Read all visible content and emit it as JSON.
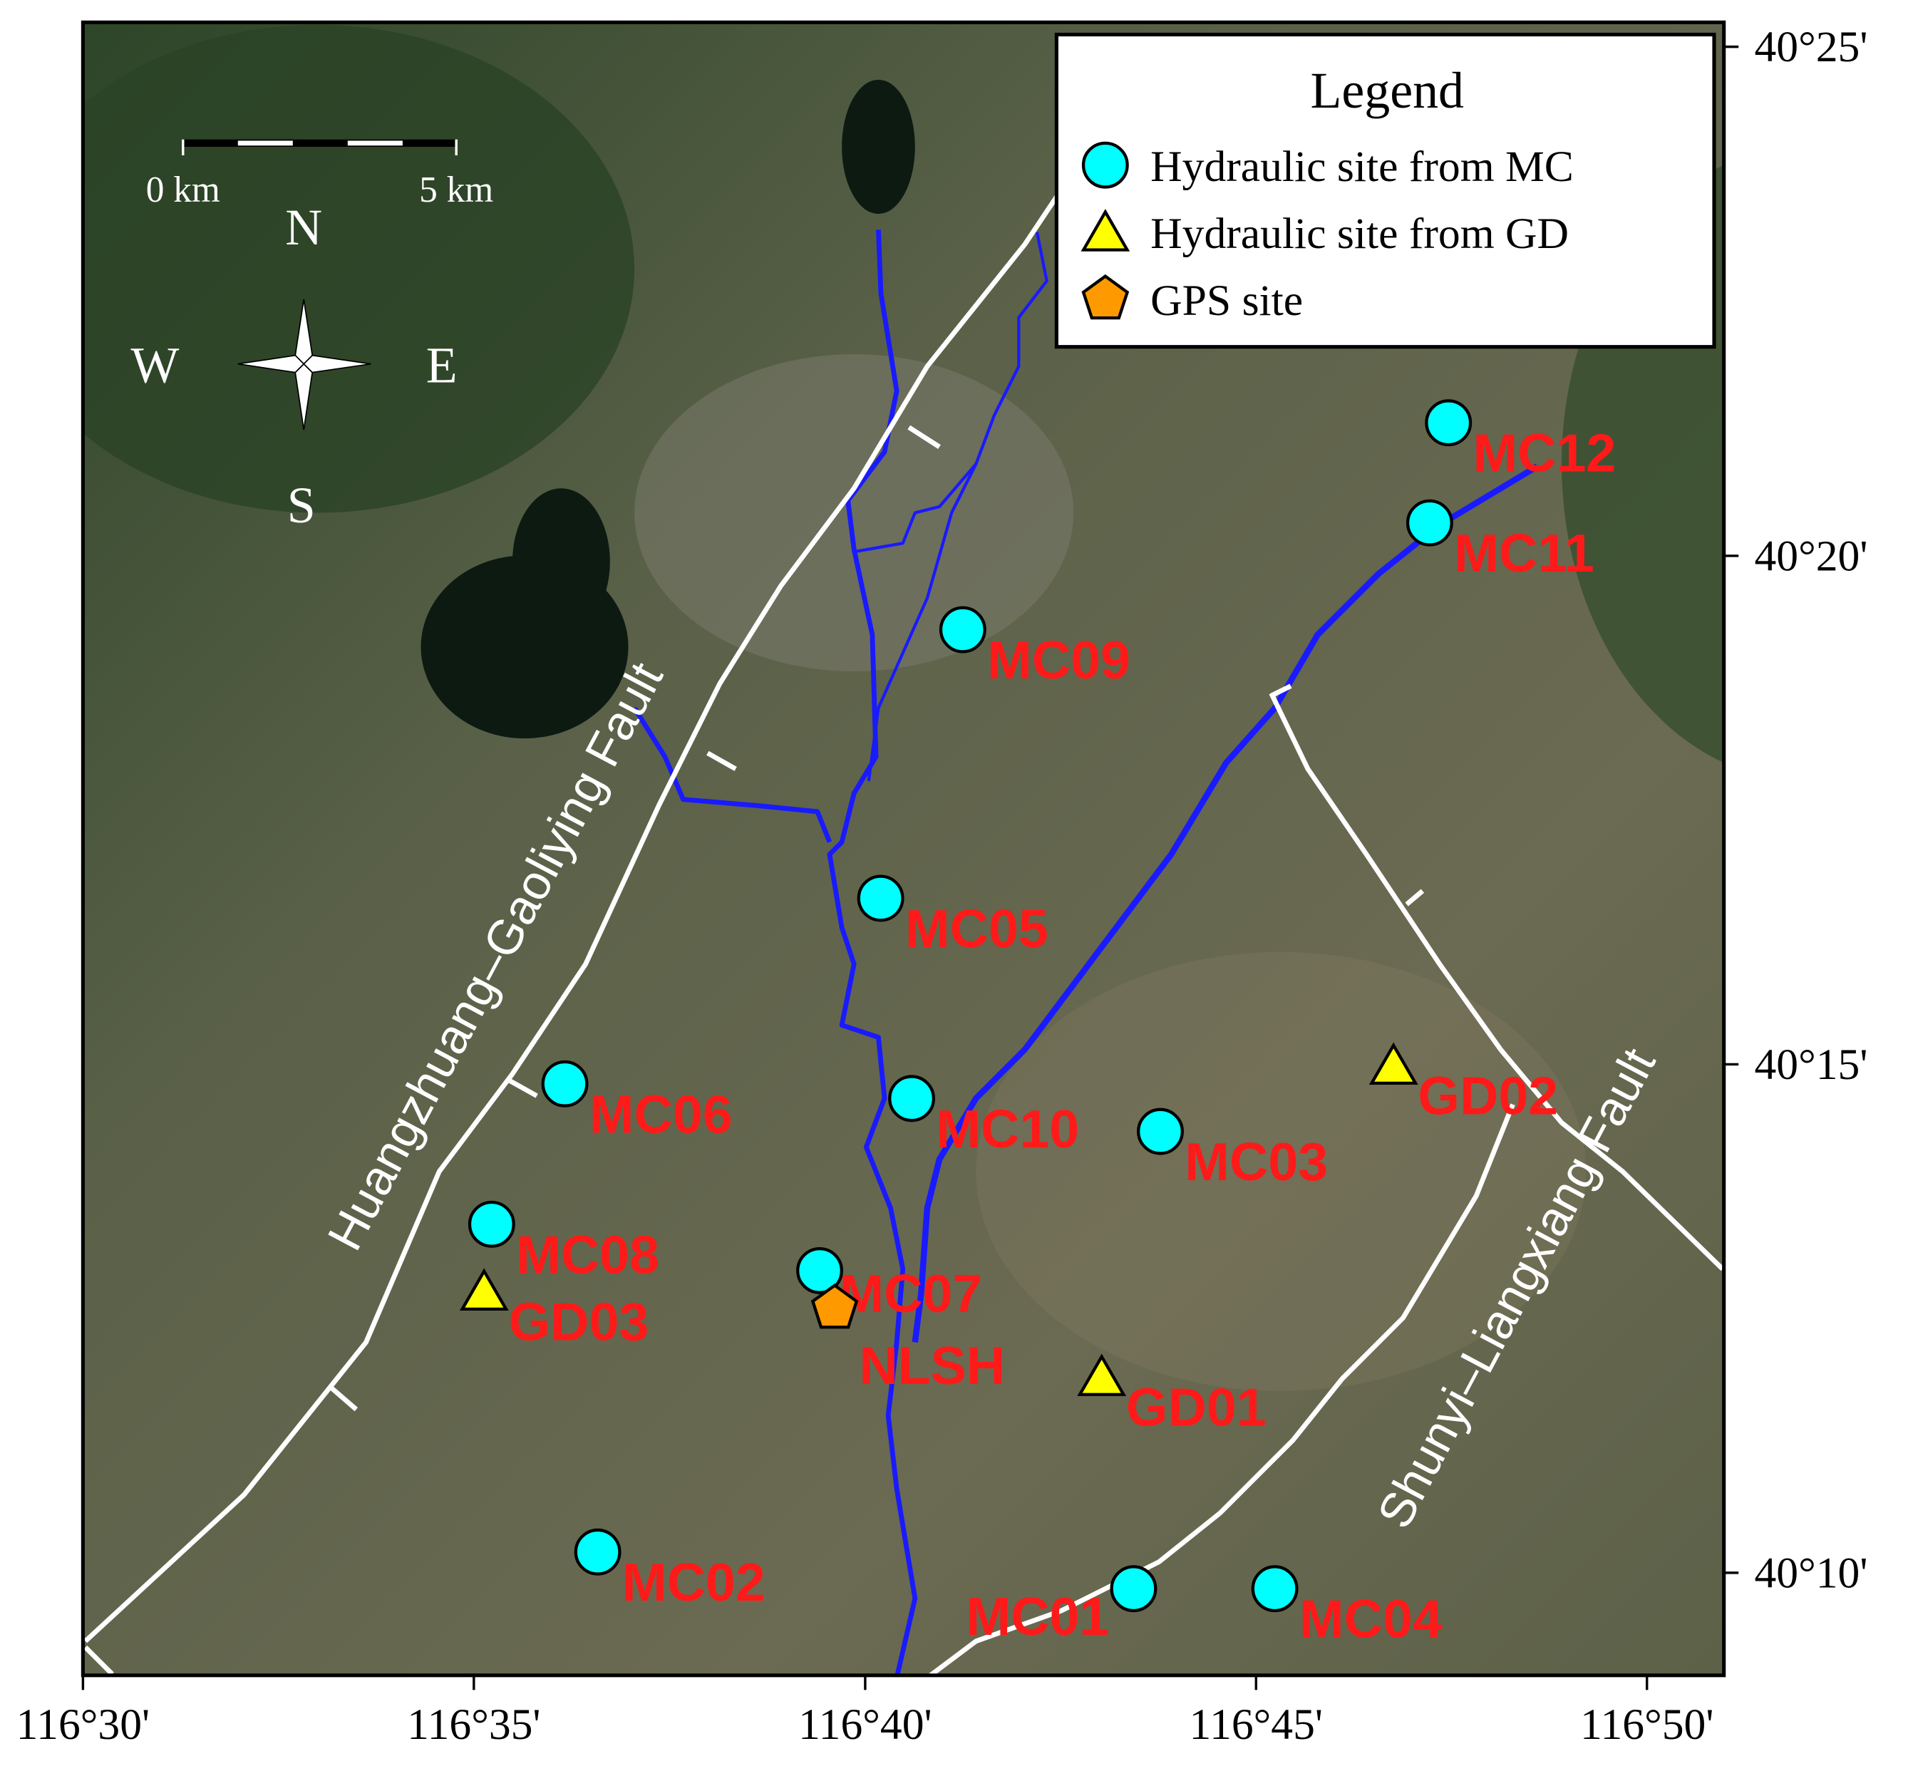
{
  "map": {
    "xlim": [
      116.5,
      116.8497
    ],
    "ylim": [
      40.1499,
      40.4207
    ],
    "xticks": [
      {
        "value": 116.5,
        "label": "116°30'"
      },
      {
        "value": 116.5833,
        "label": "116°35'"
      },
      {
        "value": 116.6667,
        "label": "116°40'"
      },
      {
        "value": 116.75,
        "label": "116°45'"
      },
      {
        "value": 116.8333,
        "label": "116°50'"
      }
    ],
    "yticks": [
      {
        "value": 40.1667,
        "label": "40°10'"
      },
      {
        "value": 40.25,
        "label": "40°15'"
      },
      {
        "value": 40.3333,
        "label": "40°20'"
      },
      {
        "value": 40.4167,
        "label": "40°25'"
      }
    ],
    "legend": {
      "title": "Legend",
      "items": [
        {
          "label": "Hydraulic site from MC",
          "marker": "circle",
          "color": "#00ffff"
        },
        {
          "label": "Hydraulic site from GD",
          "marker": "triangle",
          "color": "#ffff00"
        },
        {
          "label": "GPS site",
          "marker": "pentagon",
          "color": "#ff9900"
        }
      ]
    },
    "sites": [
      {
        "name": "MC12",
        "group": 0,
        "lon": 116.791,
        "lat": 40.3551
      },
      {
        "name": "MC11",
        "group": 0,
        "lon": 116.787,
        "lat": 40.3387
      },
      {
        "name": "MC09",
        "group": 0,
        "lon": 116.6875,
        "lat": 40.3212
      },
      {
        "name": "MC05",
        "group": 0,
        "lon": 116.67,
        "lat": 40.2772
      },
      {
        "name": "MC06",
        "group": 0,
        "lon": 116.6027,
        "lat": 40.2468
      },
      {
        "name": "MC10",
        "group": 0,
        "lon": 116.6766,
        "lat": 40.2444
      },
      {
        "name": "MC03",
        "group": 0,
        "lon": 116.7296,
        "lat": 40.239
      },
      {
        "name": "MC08",
        "group": 0,
        "lon": 116.5871,
        "lat": 40.2238
      },
      {
        "name": "MC07",
        "group": 0,
        "lon": 116.657,
        "lat": 40.2162
      },
      {
        "name": "MC02",
        "group": 0,
        "lon": 116.6097,
        "lat": 40.1701
      },
      {
        "name": "MC01",
        "group": 0,
        "lon": 116.7239,
        "lat": 40.1641
      },
      {
        "name": "MC04",
        "group": 0,
        "lon": 116.754,
        "lat": 40.1641
      },
      {
        "name": "GD02",
        "group": 1,
        "lon": 116.7793,
        "lat": 40.2498
      },
      {
        "name": "GD03",
        "group": 1,
        "lon": 116.5855,
        "lat": 40.2128
      },
      {
        "name": "GD01",
        "group": 1,
        "lon": 116.7171,
        "lat": 40.1988
      },
      {
        "name": "NLSH",
        "group": 2,
        "lon": 116.6602,
        "lat": 40.21
      }
    ],
    "faults": [
      {
        "name": "Huangzhuang–Gaoliying Fault"
      },
      {
        "name": "Shunyi–Liangxiang Fault"
      }
    ],
    "scale_bar": {
      "labels": [
        "0 km",
        "5 km"
      ]
    },
    "compass": {
      "N": "N",
      "S": "S",
      "E": "E",
      "W": "W"
    }
  }
}
